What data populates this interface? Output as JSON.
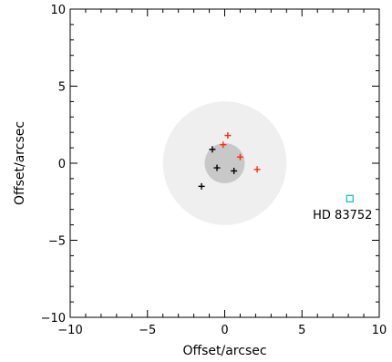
{
  "chart_data": {
    "type": "scatter",
    "xlabel": "Offset/arcsec",
    "ylabel": "Offset/arcsec",
    "xlim": [
      -10,
      10
    ],
    "ylim": [
      -10,
      10
    ],
    "xticks": [
      -10,
      -5,
      0,
      5,
      10
    ],
    "yticks": [
      -10,
      -5,
      0,
      5,
      10
    ],
    "x_tick_labels": [
      "−10",
      "−5",
      "0",
      "5",
      "10"
    ],
    "y_tick_labels": [
      "−10",
      "−5",
      "0",
      "5",
      "10"
    ],
    "grid": false,
    "regions": [
      {
        "shape": "circle",
        "center": [
          0,
          0
        ],
        "radius": 4,
        "color": "#efefef"
      },
      {
        "shape": "circle",
        "center": [
          0,
          0
        ],
        "radius": 1.3,
        "color": "#c8c8c8"
      }
    ],
    "series": [
      {
        "marker": "plus",
        "color": "#000000",
        "points": [
          [
            -0.8,
            0.9
          ],
          [
            -0.5,
            -0.3
          ],
          [
            0.6,
            -0.5
          ],
          [
            -1.5,
            -1.5
          ]
        ]
      },
      {
        "marker": "plus",
        "color": "#ff2a10",
        "points": [
          [
            0.2,
            1.8
          ],
          [
            -0.1,
            1.2
          ],
          [
            1.0,
            0.4
          ],
          [
            2.1,
            -0.4
          ]
        ]
      }
    ],
    "annotations": [
      {
        "marker": "square",
        "color": "#17c4cf",
        "point": [
          8.1,
          -2.3
        ],
        "label": "HD 83752"
      }
    ]
  }
}
